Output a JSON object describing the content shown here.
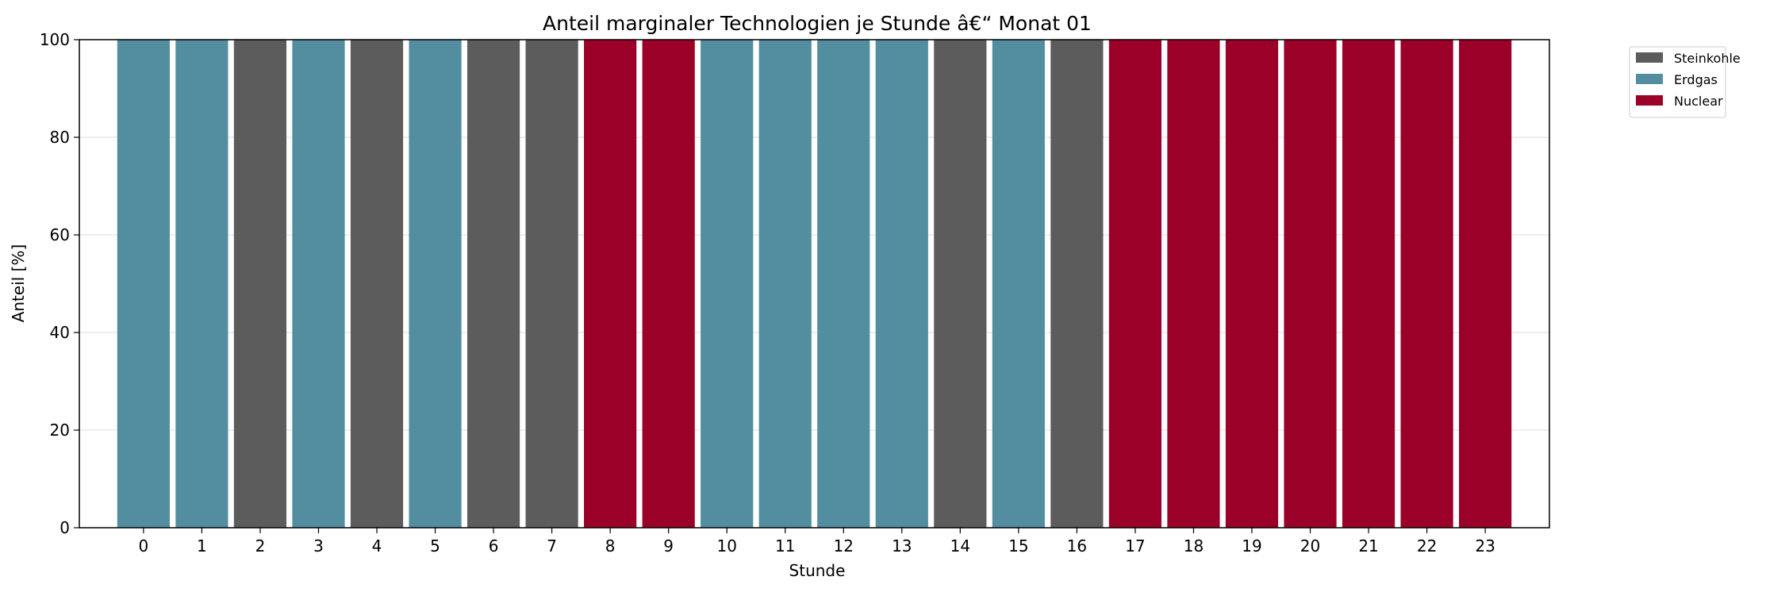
{
  "chart_data": {
    "type": "bar",
    "stacked": true,
    "title": "Anteil marginaler Technologien je Stunde â€“ Monat 01",
    "xlabel": "Stunde",
    "ylabel": "Anteil [%]",
    "ylim": [
      0,
      100
    ],
    "yticks": [
      0,
      20,
      40,
      60,
      80,
      100
    ],
    "grid": "horizontal",
    "legend_position": "outside top-right",
    "categories": [
      "0",
      "1",
      "2",
      "3",
      "4",
      "5",
      "6",
      "7",
      "8",
      "9",
      "10",
      "11",
      "12",
      "13",
      "14",
      "15",
      "16",
      "17",
      "18",
      "19",
      "20",
      "21",
      "22",
      "23"
    ],
    "series": [
      {
        "name": "Steinkohle",
        "color": "#5c5c5c",
        "values": [
          0,
          0,
          100,
          0,
          100,
          0,
          100,
          100,
          0,
          0,
          0,
          0,
          0,
          0,
          100,
          0,
          100,
          0,
          0,
          0,
          0,
          0,
          0,
          0
        ]
      },
      {
        "name": "Erdgas",
        "color": "#528ea0",
        "values": [
          100,
          100,
          0,
          100,
          0,
          100,
          0,
          0,
          0,
          0,
          100,
          100,
          100,
          100,
          0,
          100,
          0,
          0,
          0,
          0,
          0,
          0,
          0,
          0
        ]
      },
      {
        "name": "Nuclear",
        "color": "#9b0028",
        "values": [
          0,
          0,
          0,
          0,
          0,
          0,
          0,
          0,
          100,
          100,
          0,
          0,
          0,
          0,
          0,
          0,
          0,
          100,
          100,
          100,
          100,
          100,
          100,
          100
        ]
      }
    ]
  }
}
